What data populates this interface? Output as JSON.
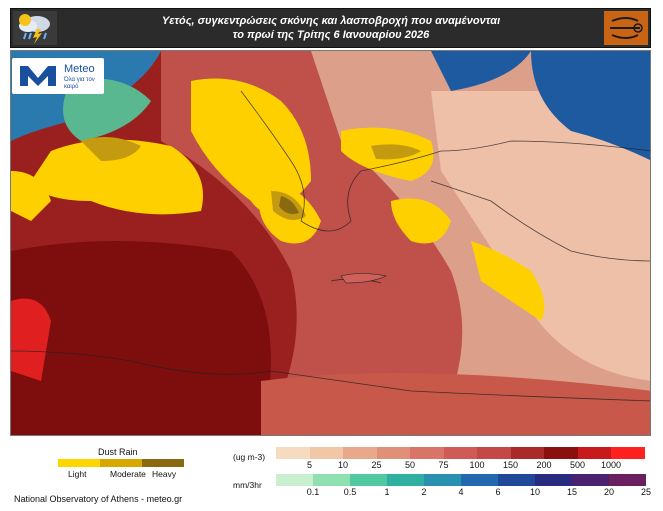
{
  "header": {
    "title_line1": "Υετός, συγκεντρώσεις σκόνης και λασποβροχή που αναμένονται",
    "title_line2": "το πρωί της Τρίτης 6 Ιανουαρίου 2026",
    "left_icon": "rain-cloud-lightning-icon",
    "right_icon": "dust-swirl-icon",
    "bar_color": "#2b2b2b",
    "right_icon_color": "#c86414"
  },
  "logo": {
    "brand": "Meteo",
    "tagline": "Όλα για τον καιρό",
    "color": "#1a4fa0"
  },
  "map": {
    "description_colors": {
      "sea_dark_blue": "#1e5aa0",
      "dust_light": "#f0d0b0",
      "dust_mid": "#c85a50",
      "dust_dark": "#7a1010",
      "dust_rain": "#ffd000"
    }
  },
  "dust_rain_legend": {
    "title": "Dust Rain",
    "items": [
      {
        "label": "Light",
        "color": "#ffd700"
      },
      {
        "label": "Moderate",
        "color": "#d8a800"
      },
      {
        "label": "Heavy",
        "color": "#8a6a10"
      }
    ]
  },
  "dust_legend": {
    "unit": "(ug m-3)",
    "colors": [
      "#f5dcc0",
      "#f0c8a8",
      "#e8a88c",
      "#e09078",
      "#d87468",
      "#d05a58",
      "#c44848",
      "#aa2a2a",
      "#8a1010",
      "#c81a1a",
      "#ff2020"
    ],
    "labels": [
      "5",
      "10",
      "25",
      "50",
      "75",
      "100",
      "150",
      "200",
      "500",
      "1000"
    ]
  },
  "rain_legend": {
    "unit": "mm/3hr",
    "colors": [
      "#c8f0d0",
      "#8ee0b0",
      "#50c8a0",
      "#30b0a0",
      "#2a90b0",
      "#2468b0",
      "#204898",
      "#2a2a80",
      "#4a2070",
      "#6a2060"
    ],
    "labels": [
      "0.1",
      "0.5",
      "1",
      "2",
      "4",
      "6",
      "10",
      "15",
      "20",
      "25"
    ]
  },
  "footer": {
    "credit": "National Observatory of Athens - meteo.gr"
  }
}
